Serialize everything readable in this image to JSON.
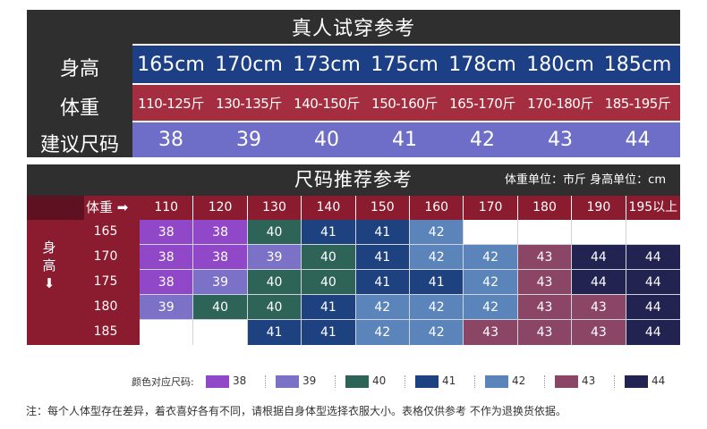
{
  "table1": {
    "title": "真人试穿参考",
    "row_labels": {
      "height": "身高",
      "weight": "体重",
      "size": "建议尺码"
    },
    "heights": [
      "165cm",
      "170cm",
      "173cm",
      "175cm",
      "178cm",
      "180cm",
      "185cm"
    ],
    "weights": [
      "110-125斤",
      "130-135斤",
      "140-150斤",
      "150-160斤",
      "165-170斤",
      "170-180斤",
      "185-195斤"
    ],
    "sizes": [
      "38",
      "39",
      "40",
      "41",
      "42",
      "43",
      "44"
    ]
  },
  "table2": {
    "title": "尺码推荐参考",
    "units": "体重单位：市斤  身高单位：cm",
    "weight_axis_label": "体重",
    "weight_arrow": "➡",
    "height_axis_label": "身高",
    "height_arrow": "⬇",
    "weight_columns": [
      "110",
      "120",
      "130",
      "140",
      "150",
      "160",
      "170",
      "180",
      "190",
      "195以上"
    ],
    "rows": [
      {
        "height": "165",
        "sizes": [
          "38",
          "38",
          "40",
          "41",
          "41",
          "42",
          "",
          "",
          "",
          ""
        ]
      },
      {
        "height": "170",
        "sizes": [
          "38",
          "38",
          "39",
          "40",
          "41",
          "42",
          "42",
          "43",
          "44",
          "44"
        ]
      },
      {
        "height": "175",
        "sizes": [
          "38",
          "39",
          "40",
          "40",
          "41",
          "41",
          "42",
          "43",
          "44",
          "44"
        ]
      },
      {
        "height": "180",
        "sizes": [
          "39",
          "40",
          "40",
          "41",
          "42",
          "42",
          "42",
          "43",
          "43",
          "44"
        ]
      },
      {
        "height": "185",
        "sizes": [
          "",
          "",
          "41",
          "41",
          "42",
          "42",
          "43",
          "43",
          "43",
          "44"
        ]
      }
    ]
  },
  "legend": {
    "title": "颜色对应尺码:",
    "items": [
      {
        "size": "38",
        "color": "#9048c8"
      },
      {
        "size": "39",
        "color": "#7b72c8"
      },
      {
        "size": "40",
        "color": "#2e6458"
      },
      {
        "size": "41",
        "color": "#1e4180"
      },
      {
        "size": "42",
        "color": "#5b84bb"
      },
      {
        "size": "43",
        "color": "#8b4565"
      },
      {
        "size": "44",
        "color": "#222351"
      }
    ]
  },
  "note": "注：每个人体型存在差异，着衣喜好各有不同，请根据自身体型选择衣服大小。表格仅供参考 不作为退换货依据。"
}
